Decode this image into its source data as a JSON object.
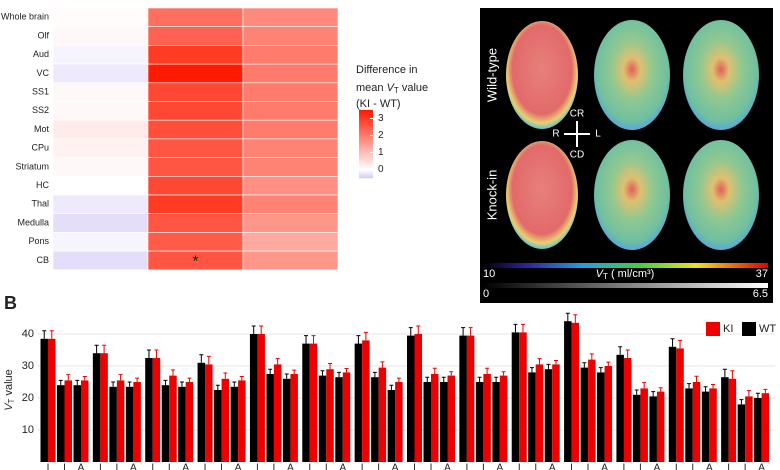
{
  "chart_data": [
    {
      "type": "heatmap",
      "rows": [
        "Whole brain",
        "Olf",
        "Aud",
        "VC",
        "SS1",
        "SS2",
        "Mot",
        "CPu",
        "Striatum",
        "HC",
        "Thal",
        "Medulla",
        "Pons",
        "CB"
      ],
      "values": [
        [
          0.05,
          2.2,
          1.8
        ],
        [
          0.1,
          2.4,
          1.9
        ],
        [
          -0.1,
          3.0,
          2.0
        ],
        [
          -0.2,
          3.5,
          2.0
        ],
        [
          0.1,
          2.8,
          2.0
        ],
        [
          0.1,
          2.8,
          2.0
        ],
        [
          0.3,
          2.7,
          2.0
        ],
        [
          0.2,
          2.6,
          1.9
        ],
        [
          0.1,
          2.6,
          1.9
        ],
        [
          0.0,
          2.8,
          1.7
        ],
        [
          -0.2,
          3.0,
          1.9
        ],
        [
          -0.3,
          2.6,
          1.6
        ],
        [
          -0.1,
          2.5,
          1.3
        ],
        [
          -0.3,
          2.6,
          1.6
        ]
      ],
      "annotation": {
        "text": "*",
        "row": 13,
        "col": 1
      },
      "legend_title": [
        "Difference in",
        "mean ",
        "V",
        "T",
        " value",
        "(KI - WT)"
      ],
      "clim": [
        -0.5,
        3.5
      ],
      "cticks": [
        0,
        1,
        2,
        3
      ],
      "colors": {
        "low": "#d4c8f4",
        "mid": "#ffffff",
        "high": "#ff1a00"
      }
    },
    {
      "type": "bar",
      "panel_label": "B",
      "y_label": [
        "V",
        "T",
        " value"
      ],
      "categories": [
        "I",
        "I",
        "A",
        "I",
        "I",
        "A",
        "I",
        "I",
        "A",
        "I",
        "I",
        "A",
        "I",
        "I",
        "A",
        "I",
        "I",
        "A",
        "I",
        "I",
        "A",
        "I",
        "I",
        "A",
        "I",
        "I",
        "A",
        "I",
        "I",
        "A",
        "I",
        "I",
        "A",
        "I",
        "I",
        "A",
        "I",
        "I",
        "A",
        "I",
        "I",
        "A"
      ],
      "series": [
        {
          "name": "WT",
          "color": "#000000",
          "values": [
            38.5,
            24,
            24,
            34,
            23.5,
            23.5,
            32.5,
            24,
            23.5,
            31,
            22.5,
            23.5,
            40,
            27.5,
            26,
            37,
            27,
            26.5,
            37,
            26.5,
            22.5,
            39.5,
            25,
            25,
            39.5,
            25,
            25,
            40.5,
            28,
            29,
            44,
            29.5,
            28,
            33.5,
            21,
            20.5,
            36,
            23,
            22,
            26.5,
            18,
            20
          ],
          "errors": [
            2.5,
            1.5,
            1.5,
            2.5,
            1.5,
            1.5,
            2.5,
            1.5,
            1.5,
            2.5,
            1.5,
            1.5,
            2.5,
            1.5,
            1.5,
            2.5,
            1.5,
            1.5,
            2.5,
            1.5,
            1.5,
            2.5,
            1.5,
            1.5,
            2.5,
            1.5,
            1.5,
            2.5,
            1.5,
            1.5,
            2.5,
            1.5,
            1.5,
            2.5,
            1.5,
            1.5,
            2.5,
            1.5,
            1.5,
            2.5,
            1.5,
            1.5
          ]
        },
        {
          "name": "KI",
          "color": "#ee0000",
          "values": [
            38.5,
            25.5,
            25.5,
            34,
            25.5,
            25,
            32.5,
            27,
            25,
            30.5,
            26,
            25.5,
            40,
            30.5,
            27.5,
            37,
            29,
            28,
            38,
            29.5,
            25,
            40,
            27.5,
            27,
            39.5,
            27.5,
            27,
            40.5,
            30.5,
            30.5,
            43.5,
            32,
            30,
            32.5,
            23,
            22,
            35.5,
            25,
            23,
            26,
            20.5,
            21.5
          ],
          "errors": [
            2.5,
            1.8,
            1.2,
            2.5,
            1.8,
            1.2,
            2.5,
            1.8,
            1.2,
            2.5,
            1.8,
            1.2,
            2.5,
            1.8,
            1.2,
            2.5,
            1.8,
            1.2,
            2.5,
            1.8,
            1.2,
            2.5,
            1.8,
            1.2,
            2.5,
            1.8,
            1.2,
            2.5,
            1.8,
            1.2,
            2.5,
            1.8,
            1.2,
            2.5,
            1.8,
            1.2,
            2.5,
            1.8,
            1.2,
            2.5,
            1.8,
            1.2
          ]
        }
      ],
      "legend_order": [
        1,
        0
      ],
      "ylim": [
        0,
        45
      ],
      "yticks": [
        10,
        20,
        30,
        40
      ],
      "grid": true
    }
  ],
  "image_panel": {
    "row_labels": [
      "Wild-type",
      "Knock-in"
    ],
    "directions": {
      "top": "CR",
      "bottom": "CD",
      "left": "R",
      "right": "L"
    },
    "scale1": {
      "min": "10",
      "max": "37",
      "label": [
        "V",
        "T",
        " ( ml/cm³)"
      ]
    },
    "scale2": {
      "min": "0",
      "max": "6.5"
    }
  }
}
